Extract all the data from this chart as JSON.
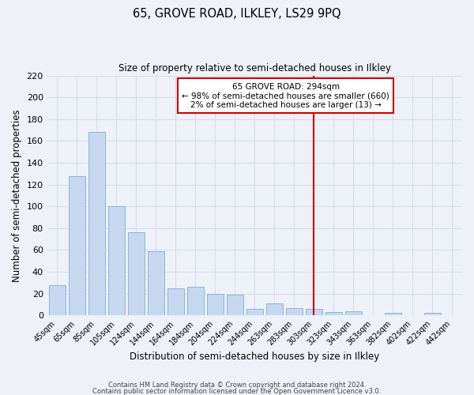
{
  "title": "65, GROVE ROAD, ILKLEY, LS29 9PQ",
  "subtitle": "Size of property relative to semi-detached houses in Ilkley",
  "xlabel": "Distribution of semi-detached houses by size in Ilkley",
  "ylabel": "Number of semi-detached properties",
  "footer_line1": "Contains HM Land Registry data © Crown copyright and database right 2024.",
  "footer_line2": "Contains public sector information licensed under the Open Government Licence v3.0.",
  "bar_labels": [
    "45sqm",
    "65sqm",
    "85sqm",
    "105sqm",
    "124sqm",
    "144sqm",
    "164sqm",
    "184sqm",
    "204sqm",
    "224sqm",
    "244sqm",
    "263sqm",
    "283sqm",
    "303sqm",
    "323sqm",
    "343sqm",
    "363sqm",
    "382sqm",
    "402sqm",
    "422sqm",
    "442sqm"
  ],
  "bar_values": [
    28,
    128,
    168,
    100,
    76,
    59,
    25,
    26,
    20,
    19,
    6,
    11,
    7,
    6,
    3,
    4,
    0,
    2,
    0,
    2,
    0
  ],
  "bar_color": "#c5d8f0",
  "bar_edge_color": "#8ab4d8",
  "background_color": "#eef2f8",
  "grid_color": "#d8dce8",
  "property_line_color": "#cc0000",
  "annotation_title": "65 GROVE ROAD: 294sqm",
  "annotation_line1": "← 98% of semi-detached houses are smaller (660)",
  "annotation_line2": "2% of semi-detached houses are larger (13) →",
  "annotation_box_color": "#cc0000",
  "ylim": [
    0,
    220
  ],
  "yticks": [
    0,
    20,
    40,
    60,
    80,
    100,
    120,
    140,
    160,
    180,
    200,
    220
  ],
  "property_line_bar_index": 13.5
}
